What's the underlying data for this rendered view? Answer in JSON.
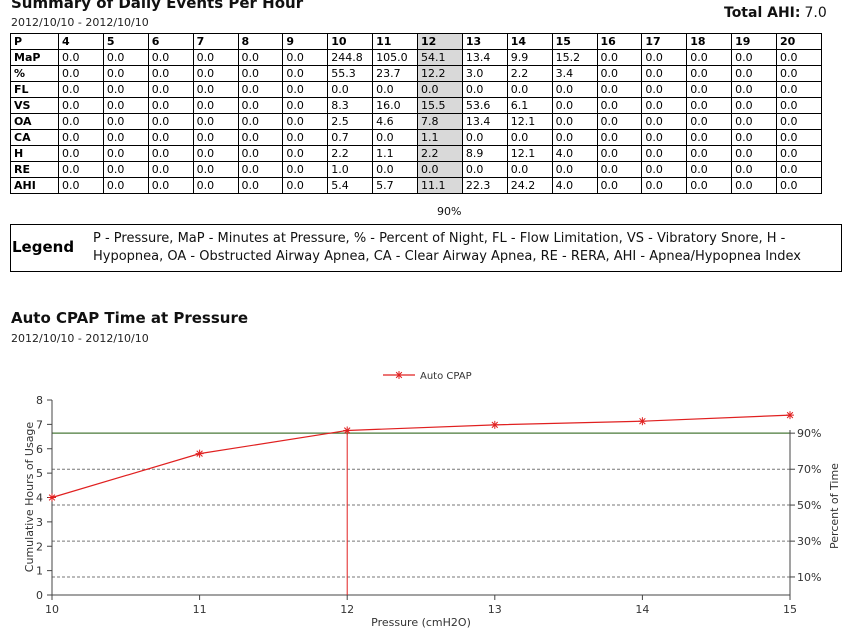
{
  "header": {
    "title": "Summary of Daily Events Per Hour",
    "date_range": "2012/10/10 - 2012/10/10",
    "total_ahi_label": "Total AHI:",
    "total_ahi_value": "7.0"
  },
  "table": {
    "columns": [
      "P",
      "4",
      "5",
      "6",
      "7",
      "8",
      "9",
      "10",
      "11",
      "12",
      "13",
      "14",
      "15",
      "16",
      "17",
      "18",
      "19",
      "20"
    ],
    "rows": [
      [
        "MaP",
        "0.0",
        "0.0",
        "0.0",
        "0.0",
        "0.0",
        "0.0",
        "244.8",
        "105.0",
        "54.1",
        "13.4",
        "9.9",
        "15.2",
        "0.0",
        "0.0",
        "0.0",
        "0.0",
        "0.0"
      ],
      [
        "%",
        "0.0",
        "0.0",
        "0.0",
        "0.0",
        "0.0",
        "0.0",
        "55.3",
        "23.7",
        "12.2",
        "3.0",
        "2.2",
        "3.4",
        "0.0",
        "0.0",
        "0.0",
        "0.0",
        "0.0"
      ],
      [
        "FL",
        "0.0",
        "0.0",
        "0.0",
        "0.0",
        "0.0",
        "0.0",
        "0.0",
        "0.0",
        "0.0",
        "0.0",
        "0.0",
        "0.0",
        "0.0",
        "0.0",
        "0.0",
        "0.0",
        "0.0"
      ],
      [
        "VS",
        "0.0",
        "0.0",
        "0.0",
        "0.0",
        "0.0",
        "0.0",
        "8.3",
        "16.0",
        "15.5",
        "53.6",
        "6.1",
        "0.0",
        "0.0",
        "0.0",
        "0.0",
        "0.0",
        "0.0"
      ],
      [
        "OA",
        "0.0",
        "0.0",
        "0.0",
        "0.0",
        "0.0",
        "0.0",
        "2.5",
        "4.6",
        "7.8",
        "13.4",
        "12.1",
        "0.0",
        "0.0",
        "0.0",
        "0.0",
        "0.0",
        "0.0"
      ],
      [
        "CA",
        "0.0",
        "0.0",
        "0.0",
        "0.0",
        "0.0",
        "0.0",
        "0.7",
        "0.0",
        "1.1",
        "0.0",
        "0.0",
        "0.0",
        "0.0",
        "0.0",
        "0.0",
        "0.0",
        "0.0"
      ],
      [
        "H",
        "0.0",
        "0.0",
        "0.0",
        "0.0",
        "0.0",
        "0.0",
        "2.2",
        "1.1",
        "2.2",
        "8.9",
        "12.1",
        "4.0",
        "0.0",
        "0.0",
        "0.0",
        "0.0",
        "0.0"
      ],
      [
        "RE",
        "0.0",
        "0.0",
        "0.0",
        "0.0",
        "0.0",
        "0.0",
        "1.0",
        "0.0",
        "0.0",
        "0.0",
        "0.0",
        "0.0",
        "0.0",
        "0.0",
        "0.0",
        "0.0",
        "0.0"
      ],
      [
        "AHI",
        "0.0",
        "0.0",
        "0.0",
        "0.0",
        "0.0",
        "0.0",
        "5.4",
        "5.7",
        "11.1",
        "22.3",
        "24.2",
        "4.0",
        "0.0",
        "0.0",
        "0.0",
        "0.0",
        "0.0"
      ]
    ],
    "highlight_column": "12",
    "highlight_color": "#d9d9d9",
    "percentile_label": "90%"
  },
  "legend": {
    "title": "Legend",
    "text": "P - Pressure, MaP - Minutes at Pressure, % - Percent of Night, FL - Flow Limitation, VS - Vibratory Snore, H - Hypopnea, OA - Obstructed Airway Apnea, CA - Clear Airway Apnea, RE - RERA, AHI - Apnea/Hypopnea Index"
  },
  "chart_section": {
    "title": "Auto CPAP Time at Pressure",
    "date_range": "2012/10/10 - 2012/10/10"
  },
  "chart_data": {
    "type": "line",
    "legend_entry": "Auto CPAP",
    "legend_position": "top-center",
    "xlabel": "Pressure (cmH2O)",
    "ylabel": "Cumulative Hours of Usage",
    "y2label": "Percent of Time",
    "x": [
      10,
      11,
      12,
      13,
      14,
      15
    ],
    "series": [
      {
        "name": "Auto CPAP",
        "values": [
          4.0,
          5.8,
          6.75,
          6.98,
          7.13,
          7.38
        ],
        "color": "#e02020"
      }
    ],
    "xlim": [
      10,
      15
    ],
    "ylim": [
      0,
      8
    ],
    "xticks": [
      "10",
      "11",
      "12",
      "13",
      "14",
      "15"
    ],
    "yticks": [
      "0",
      "1",
      "2",
      "3",
      "4",
      "5",
      "6",
      "7",
      "8"
    ],
    "percent_lines": [
      {
        "label": "10%",
        "y": 0.74,
        "style": "dashed"
      },
      {
        "label": "30%",
        "y": 2.21,
        "style": "dashed"
      },
      {
        "label": "50%",
        "y": 3.69,
        "style": "dashed"
      },
      {
        "label": "70%",
        "y": 5.16,
        "style": "dashed"
      },
      {
        "label": "90%",
        "y": 6.64,
        "style": "solid"
      }
    ],
    "percentile_marker_x": 12,
    "reference_line_color": "#4a7a3a",
    "marker_line_color": "#e02020",
    "grid": false
  }
}
